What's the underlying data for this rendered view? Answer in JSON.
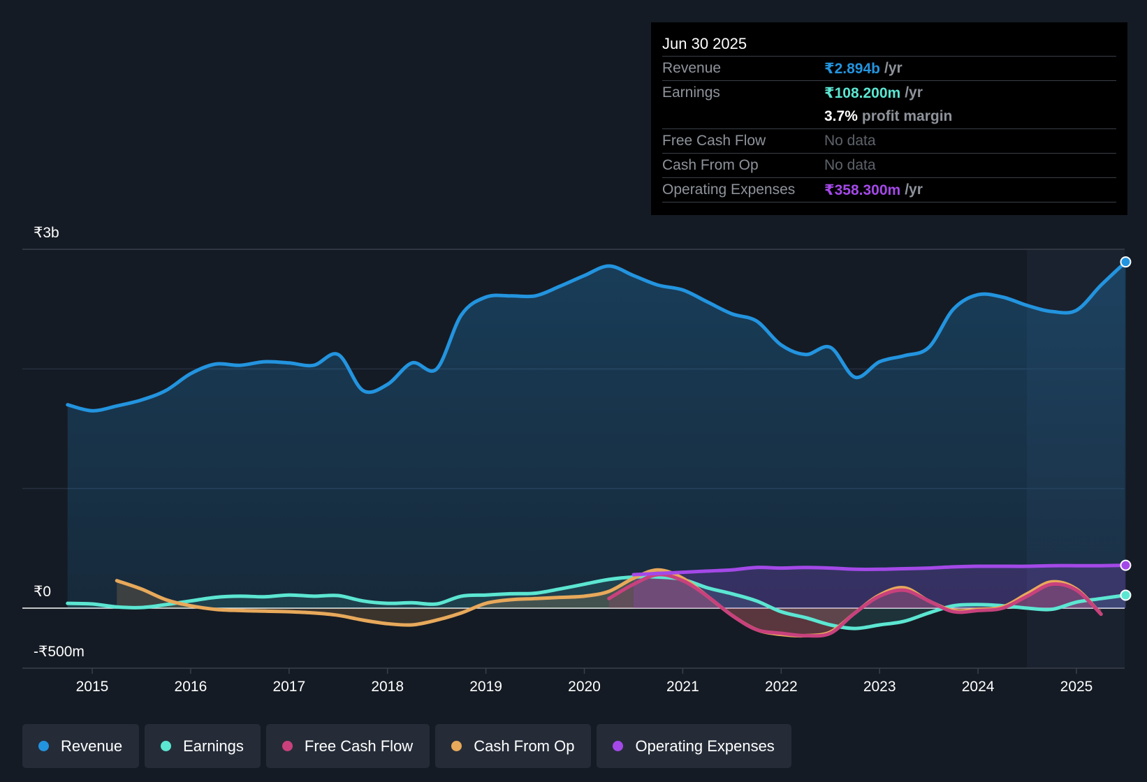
{
  "tooltip": {
    "date": "Jun 30 2025",
    "rows": [
      {
        "label": "Revenue",
        "value": "₹2.894b",
        "unit": "/yr",
        "color": "#2394df"
      },
      {
        "label": "Earnings",
        "value": "₹108.200m",
        "unit": "/yr",
        "color": "#5ce6d2"
      },
      {
        "label": "",
        "value": "3.7%",
        "unit": "profit margin",
        "color": "#ffffff"
      },
      {
        "label": "Free Cash Flow",
        "value": "No data",
        "unit": "",
        "color": "#5e636b"
      },
      {
        "label": "Cash From Op",
        "value": "No data",
        "unit": "",
        "color": "#5e636b"
      },
      {
        "label": "Operating Expenses",
        "value": "₹358.300m",
        "unit": "/yr",
        "color": "#a449e8"
      }
    ]
  },
  "legend": [
    {
      "label": "Revenue",
      "color": "#2394df"
    },
    {
      "label": "Earnings",
      "color": "#5ce6d2"
    },
    {
      "label": "Free Cash Flow",
      "color": "#c8417d"
    },
    {
      "label": "Cash From Op",
      "color": "#e8a95b"
    },
    {
      "label": "Operating Expenses",
      "color": "#a449e8"
    }
  ],
  "chart_data": {
    "type": "area",
    "title": "",
    "y_tick_labels": [
      {
        "label": "₹3b",
        "value": 3000
      },
      {
        "label": "₹0",
        "value": 0
      },
      {
        "label": "-₹500m",
        "value": -500
      }
    ],
    "ylim": [
      -500,
      3000
    ],
    "x_tick_labels": [
      "2015",
      "2016",
      "2017",
      "2018",
      "2019",
      "2020",
      "2021",
      "2022",
      "2023",
      "2024",
      "2025"
    ],
    "xlim": [
      2014.25,
      2025.5
    ],
    "units": "₹ millions",
    "grid": true,
    "legend_placement": "bottom",
    "series": [
      {
        "name": "Revenue",
        "color": "#2394df",
        "fill": true,
        "points": [
          [
            2014.75,
            1700
          ],
          [
            2015.0,
            1650
          ],
          [
            2015.25,
            1690
          ],
          [
            2015.5,
            1740
          ],
          [
            2015.75,
            1820
          ],
          [
            2016.0,
            1960
          ],
          [
            2016.25,
            2040
          ],
          [
            2016.5,
            2030
          ],
          [
            2016.75,
            2060
          ],
          [
            2017.0,
            2050
          ],
          [
            2017.25,
            2030
          ],
          [
            2017.5,
            2120
          ],
          [
            2017.75,
            1820
          ],
          [
            2018.0,
            1870
          ],
          [
            2018.25,
            2050
          ],
          [
            2018.5,
            2000
          ],
          [
            2018.75,
            2450
          ],
          [
            2019.0,
            2600
          ],
          [
            2019.25,
            2610
          ],
          [
            2019.5,
            2610
          ],
          [
            2019.75,
            2690
          ],
          [
            2020.0,
            2780
          ],
          [
            2020.25,
            2860
          ],
          [
            2020.5,
            2780
          ],
          [
            2020.75,
            2700
          ],
          [
            2021.0,
            2660
          ],
          [
            2021.25,
            2560
          ],
          [
            2021.5,
            2460
          ],
          [
            2021.75,
            2400
          ],
          [
            2022.0,
            2200
          ],
          [
            2022.25,
            2120
          ],
          [
            2022.5,
            2180
          ],
          [
            2022.75,
            1930
          ],
          [
            2023.0,
            2060
          ],
          [
            2023.25,
            2110
          ],
          [
            2023.5,
            2180
          ],
          [
            2023.75,
            2500
          ],
          [
            2024.0,
            2620
          ],
          [
            2024.25,
            2600
          ],
          [
            2024.5,
            2530
          ],
          [
            2024.75,
            2480
          ],
          [
            2025.0,
            2490
          ],
          [
            2025.25,
            2700
          ],
          [
            2025.5,
            2894
          ]
        ]
      },
      {
        "name": "Earnings",
        "color": "#5ce6d2",
        "fill": true,
        "points": [
          [
            2014.75,
            40
          ],
          [
            2015.0,
            35
          ],
          [
            2015.25,
            10
          ],
          [
            2015.5,
            5
          ],
          [
            2015.75,
            30
          ],
          [
            2016.0,
            60
          ],
          [
            2016.25,
            90
          ],
          [
            2016.5,
            100
          ],
          [
            2016.75,
            95
          ],
          [
            2017.0,
            110
          ],
          [
            2017.25,
            100
          ],
          [
            2017.5,
            105
          ],
          [
            2017.75,
            60
          ],
          [
            2018.0,
            40
          ],
          [
            2018.25,
            45
          ],
          [
            2018.5,
            35
          ],
          [
            2018.75,
            100
          ],
          [
            2019.0,
            110
          ],
          [
            2019.25,
            120
          ],
          [
            2019.5,
            125
          ],
          [
            2019.75,
            160
          ],
          [
            2020.0,
            200
          ],
          [
            2020.25,
            240
          ],
          [
            2020.5,
            260
          ],
          [
            2020.75,
            260
          ],
          [
            2021.0,
            240
          ],
          [
            2021.25,
            170
          ],
          [
            2021.5,
            120
          ],
          [
            2021.75,
            60
          ],
          [
            2022.0,
            -30
          ],
          [
            2022.25,
            -80
          ],
          [
            2022.5,
            -140
          ],
          [
            2022.75,
            -170
          ],
          [
            2023.0,
            -140
          ],
          [
            2023.25,
            -110
          ],
          [
            2023.5,
            -40
          ],
          [
            2023.75,
            20
          ],
          [
            2024.0,
            30
          ],
          [
            2024.25,
            20
          ],
          [
            2024.5,
            0
          ],
          [
            2024.75,
            -10
          ],
          [
            2025.0,
            50
          ],
          [
            2025.25,
            80
          ],
          [
            2025.5,
            108.2
          ]
        ]
      },
      {
        "name": "Free Cash Flow",
        "color": "#c8417d",
        "fill": true,
        "points": [
          [
            2020.25,
            80
          ],
          [
            2020.5,
            200
          ],
          [
            2020.75,
            280
          ],
          [
            2021.0,
            230
          ],
          [
            2021.25,
            100
          ],
          [
            2021.5,
            -60
          ],
          [
            2021.75,
            -180
          ],
          [
            2022.0,
            -210
          ],
          [
            2022.25,
            -230
          ],
          [
            2022.5,
            -210
          ],
          [
            2022.75,
            -40
          ],
          [
            2023.0,
            100
          ],
          [
            2023.25,
            150
          ],
          [
            2023.5,
            60
          ],
          [
            2023.75,
            -30
          ],
          [
            2024.0,
            -20
          ],
          [
            2024.25,
            0
          ],
          [
            2024.5,
            100
          ],
          [
            2024.75,
            200
          ],
          [
            2025.0,
            150
          ],
          [
            2025.25,
            -50
          ]
        ]
      },
      {
        "name": "Cash From Op",
        "color": "#e8a95b",
        "fill": true,
        "points": [
          [
            2015.25,
            230
          ],
          [
            2015.5,
            160
          ],
          [
            2015.75,
            70
          ],
          [
            2016.0,
            20
          ],
          [
            2016.25,
            -10
          ],
          [
            2016.5,
            -20
          ],
          [
            2016.75,
            -25
          ],
          [
            2017.0,
            -30
          ],
          [
            2017.25,
            -40
          ],
          [
            2017.5,
            -60
          ],
          [
            2017.75,
            -100
          ],
          [
            2018.0,
            -130
          ],
          [
            2018.25,
            -140
          ],
          [
            2018.5,
            -100
          ],
          [
            2018.75,
            -40
          ],
          [
            2019.0,
            40
          ],
          [
            2019.25,
            70
          ],
          [
            2019.5,
            80
          ],
          [
            2019.75,
            90
          ],
          [
            2020.0,
            100
          ],
          [
            2020.25,
            140
          ],
          [
            2020.5,
            250
          ],
          [
            2020.75,
            320
          ],
          [
            2021.0,
            250
          ],
          [
            2021.25,
            100
          ],
          [
            2021.5,
            -60
          ],
          [
            2021.75,
            -180
          ],
          [
            2022.0,
            -220
          ],
          [
            2022.25,
            -230
          ],
          [
            2022.5,
            -200
          ],
          [
            2022.75,
            -40
          ],
          [
            2023.0,
            110
          ],
          [
            2023.25,
            170
          ],
          [
            2023.5,
            60
          ],
          [
            2023.75,
            -20
          ],
          [
            2024.0,
            -10
          ],
          [
            2024.25,
            10
          ],
          [
            2024.5,
            120
          ],
          [
            2024.75,
            220
          ],
          [
            2025.0,
            160
          ],
          [
            2025.25,
            -50
          ]
        ]
      },
      {
        "name": "Operating Expenses",
        "color": "#a449e8",
        "fill": true,
        "points": [
          [
            2020.5,
            280
          ],
          [
            2020.75,
            290
          ],
          [
            2021.0,
            300
          ],
          [
            2021.25,
            310
          ],
          [
            2021.5,
            320
          ],
          [
            2021.75,
            340
          ],
          [
            2022.0,
            335
          ],
          [
            2022.25,
            340
          ],
          [
            2022.5,
            335
          ],
          [
            2022.75,
            325
          ],
          [
            2023.0,
            325
          ],
          [
            2023.25,
            330
          ],
          [
            2023.5,
            335
          ],
          [
            2023.75,
            345
          ],
          [
            2024.0,
            350
          ],
          [
            2024.25,
            350
          ],
          [
            2024.5,
            350
          ],
          [
            2024.75,
            355
          ],
          [
            2025.0,
            355
          ],
          [
            2025.25,
            355
          ],
          [
            2025.5,
            358.3
          ]
        ]
      }
    ]
  }
}
